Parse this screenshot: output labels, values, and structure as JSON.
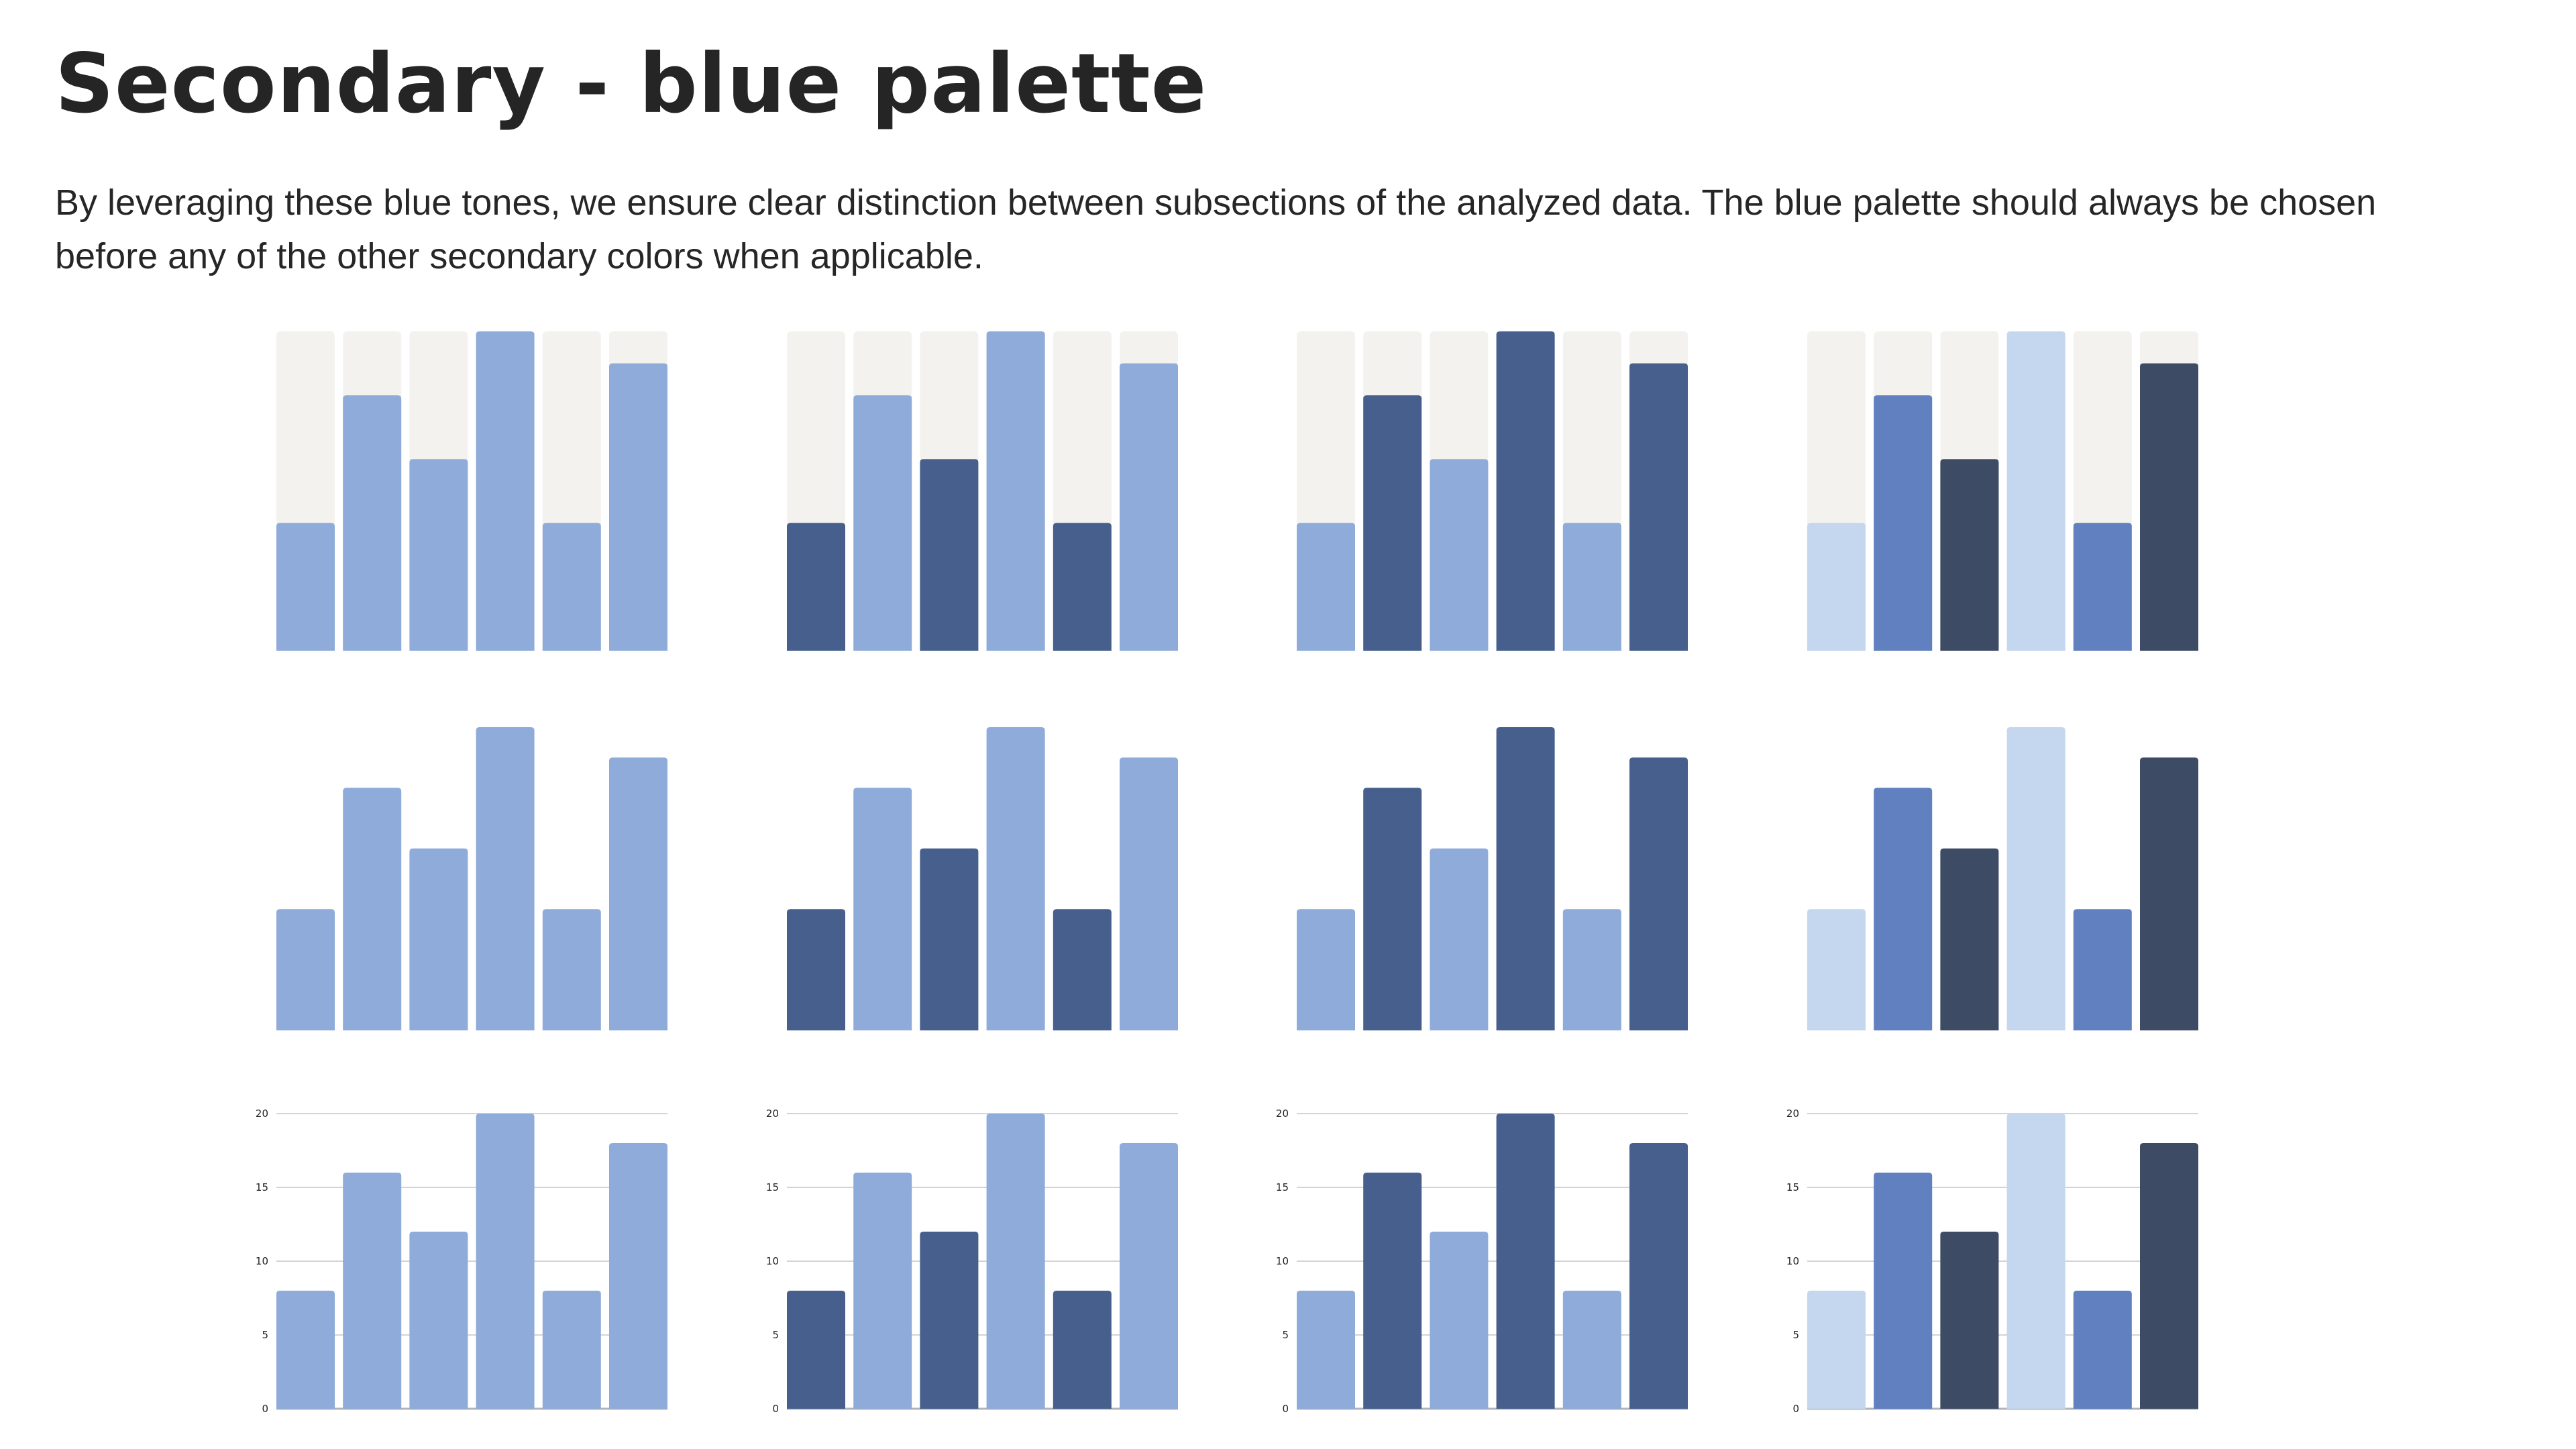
{
  "header": {
    "title": "Secondary - blue palette",
    "description": "By leveraging these blue tones, we ensure clear distinction between subsections of the analyzed data. The blue palette should always be chosen before any of the other secondary colors when applicable."
  },
  "palette": {
    "track": "#f4f2ee",
    "gridline": "#d4d4d4",
    "baseline": "#b0b4ba",
    "variants": [
      [
        "#8eabd9",
        "#8eabd9",
        "#8eabd9",
        "#8eabd9",
        "#8eabd9",
        "#8eabd9"
      ],
      [
        "#465f8c",
        "#8eabd9",
        "#465f8c",
        "#8eabd9",
        "#465f8c",
        "#8eabd9"
      ],
      [
        "#8eabd9",
        "#465f8c",
        "#8eabd9",
        "#465f8c",
        "#8eabd9",
        "#465f8c"
      ],
      [
        "#c5d6ef",
        "#6080c0",
        "#3d4b65",
        "#c5d6ef",
        "#6080c0",
        "#3d4b65"
      ]
    ]
  },
  "chart_data": {
    "type": "bar",
    "categories": [
      "",
      "",
      "",
      "",
      "",
      ""
    ],
    "values": [
      8,
      16,
      12,
      20,
      8,
      18
    ],
    "ylim": [
      0,
      20
    ],
    "yticks": [
      "0",
      "5",
      "10",
      "15",
      "20"
    ],
    "title": "",
    "xlabel": "",
    "ylabel": "",
    "rows": [
      {
        "style": "track"
      },
      {
        "style": "plain"
      },
      {
        "style": "axis"
      }
    ],
    "columns": 4
  }
}
